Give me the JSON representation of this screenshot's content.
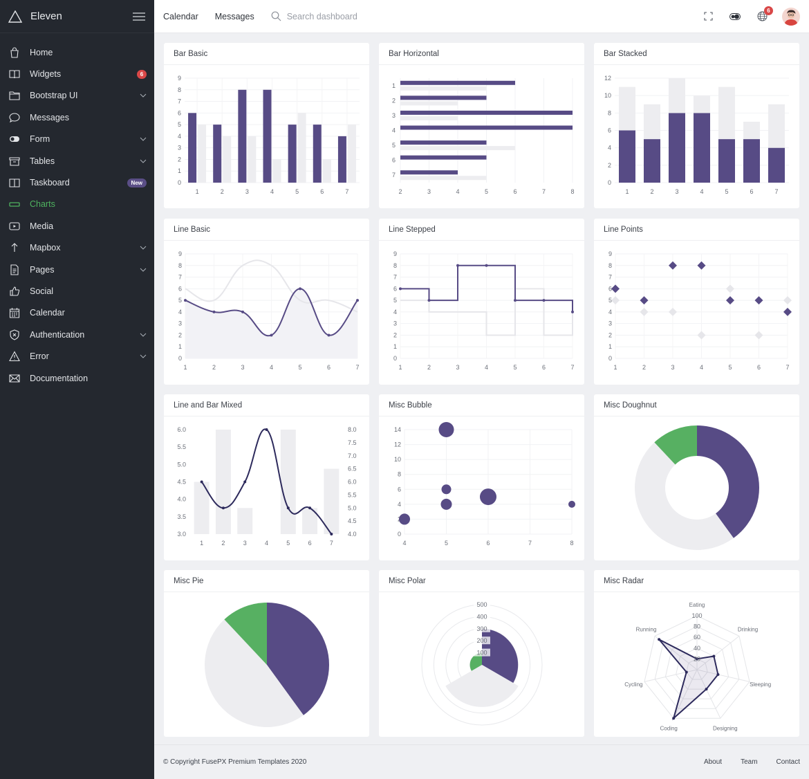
{
  "brand": {
    "name": "Eleven"
  },
  "sidebar": {
    "items": [
      {
        "label": "Home",
        "icon": "bag-icon"
      },
      {
        "label": "Widgets",
        "icon": "book-icon",
        "badge": "6"
      },
      {
        "label": "Bootstrap UI",
        "icon": "folder-icon",
        "chevron": true
      },
      {
        "label": "Messages",
        "icon": "chat-icon"
      },
      {
        "label": "Form",
        "icon": "toggle-icon",
        "chevron": true
      },
      {
        "label": "Tables",
        "icon": "archive-icon",
        "chevron": true
      },
      {
        "label": "Taskboard",
        "icon": "board-icon",
        "badge_new": "New"
      },
      {
        "label": "Charts",
        "icon": "chart-icon",
        "active": true
      },
      {
        "label": "Media",
        "icon": "play-icon"
      },
      {
        "label": "Mapbox",
        "icon": "arrow-up-icon",
        "chevron": true
      },
      {
        "label": "Pages",
        "icon": "page-icon",
        "chevron": true
      },
      {
        "label": "Social",
        "icon": "thumb-icon"
      },
      {
        "label": "Calendar",
        "icon": "calendar-icon"
      },
      {
        "label": "Authentication",
        "icon": "shield-icon",
        "chevron": true
      },
      {
        "label": "Error",
        "icon": "warning-icon",
        "chevron": true
      },
      {
        "label": "Documentation",
        "icon": "mail-icon"
      }
    ]
  },
  "header": {
    "calendar": "Calendar",
    "messages": "Messages",
    "search_placeholder": "Search dashboard",
    "notification_count": "6"
  },
  "cards": {
    "bar_basic": "Bar Basic",
    "bar_horizontal": "Bar Horizontal",
    "bar_stacked": "Bar Stacked",
    "line_basic": "Line Basic",
    "line_stepped": "Line Stepped",
    "line_points": "Line Points",
    "line_bar_mixed": "Line and Bar Mixed",
    "misc_bubble": "Misc Bubble",
    "misc_doughnut": "Misc Doughnut",
    "misc_pie": "Misc Pie",
    "misc_polar": "Misc Polar",
    "misc_radar": "Misc Radar"
  },
  "colors": {
    "primary": "#574b85",
    "secondary": "#ededf0",
    "green": "#57b062"
  },
  "chart_data": [
    {
      "id": "bar_basic",
      "type": "bar",
      "title": "Bar Basic",
      "categories": [
        "1",
        "2",
        "3",
        "4",
        "5",
        "6",
        "7"
      ],
      "series": [
        {
          "values": [
            6,
            5,
            8,
            8,
            5,
            5,
            4
          ]
        },
        {
          "values": [
            5,
            4,
            4,
            2,
            6,
            2,
            5
          ]
        }
      ],
      "ylim": [
        0,
        9
      ]
    },
    {
      "id": "bar_horizontal",
      "type": "bar",
      "orientation": "horizontal",
      "title": "Bar Horizontal",
      "categories": [
        "1",
        "2",
        "3",
        "4",
        "5",
        "6",
        "7"
      ],
      "series": [
        {
          "values": [
            6,
            5,
            8,
            8,
            5,
            5,
            4
          ]
        },
        {
          "values": [
            5,
            4,
            4,
            2,
            6,
            2,
            5
          ]
        }
      ],
      "xlim": [
        2,
        8
      ]
    },
    {
      "id": "bar_stacked",
      "type": "bar",
      "stacked": true,
      "title": "Bar Stacked",
      "categories": [
        "1",
        "2",
        "3",
        "4",
        "5",
        "6",
        "7"
      ],
      "series": [
        {
          "values": [
            6,
            5,
            8,
            8,
            5,
            5,
            4
          ]
        },
        {
          "values": [
            5,
            4,
            4,
            2,
            6,
            2,
            5
          ]
        }
      ],
      "ylim": [
        0,
        12
      ]
    },
    {
      "id": "line_basic",
      "type": "line",
      "smooth": true,
      "title": "Line Basic",
      "x": [
        1,
        2,
        3,
        4,
        5,
        6,
        7
      ],
      "series": [
        {
          "values": [
            5,
            4,
            4,
            2,
            6,
            2,
            5
          ]
        },
        {
          "values": [
            6,
            5,
            8,
            8,
            5,
            5,
            4
          ]
        }
      ],
      "ylim": [
        0,
        9
      ]
    },
    {
      "id": "line_stepped",
      "type": "line",
      "stepped": true,
      "title": "Line Stepped",
      "x": [
        1,
        2,
        3,
        4,
        5,
        6,
        7
      ],
      "series": [
        {
          "values": [
            6,
            5,
            8,
            8,
            5,
            5,
            4
          ]
        },
        {
          "values": [
            5,
            4,
            4,
            2,
            6,
            2,
            5
          ]
        }
      ],
      "ylim": [
        0,
        9
      ]
    },
    {
      "id": "line_points",
      "type": "scatter",
      "title": "Line Points",
      "x": [
        1,
        2,
        3,
        4,
        5,
        6,
        7
      ],
      "series": [
        {
          "values": [
            6,
            5,
            8,
            8,
            5,
            5,
            4
          ]
        },
        {
          "values": [
            5,
            4,
            4,
            2,
            6,
            2,
            5
          ]
        }
      ],
      "ylim": [
        0,
        9
      ]
    },
    {
      "id": "line_bar_mixed",
      "type": "line",
      "title": "Line and Bar Mixed",
      "x": [
        1,
        2,
        3,
        4,
        5,
        6,
        7
      ],
      "series": [
        {
          "type": "line",
          "axis": "left",
          "values": [
            4.5,
            3.75,
            4.5,
            6,
            3.75,
            3.75,
            3
          ]
        },
        {
          "type": "bar",
          "axis": "right",
          "values": [
            6,
            8,
            5,
            4,
            8,
            5,
            6.5
          ]
        }
      ],
      "y_left": [
        3,
        6
      ],
      "y_right": [
        4,
        8
      ]
    },
    {
      "id": "misc_bubble",
      "type": "scatter",
      "bubble": true,
      "title": "Misc Bubble",
      "points": [
        {
          "x": 4,
          "y": 2,
          "r": 8
        },
        {
          "x": 5,
          "y": 14,
          "r": 11
        },
        {
          "x": 5,
          "y": 6,
          "r": 7
        },
        {
          "x": 5,
          "y": 4,
          "r": 8
        },
        {
          "x": 6,
          "y": 5,
          "r": 12
        },
        {
          "x": 8,
          "y": 4,
          "r": 5
        }
      ],
      "xlim": [
        4,
        8
      ],
      "ylim": [
        0,
        14
      ]
    },
    {
      "id": "misc_doughnut",
      "type": "pie",
      "doughnut": true,
      "title": "Misc Doughnut",
      "values": [
        40,
        48,
        12
      ]
    },
    {
      "id": "misc_pie",
      "type": "pie",
      "title": "Misc Pie",
      "values": [
        40,
        48,
        12
      ]
    },
    {
      "id": "misc_polar",
      "type": "pie",
      "polar": true,
      "title": "Misc Polar",
      "values": [
        300,
        350,
        100
      ],
      "rlim": [
        0,
        500
      ],
      "ticks": [
        "100",
        "200",
        "300",
        "400",
        "500"
      ]
    },
    {
      "id": "misc_radar",
      "type": "radar",
      "title": "Misc Radar",
      "labels": [
        "Eating",
        "Drinking",
        "Sleeping",
        "Designing",
        "Coding",
        "Cycling",
        "Running"
      ],
      "values": [
        20,
        40,
        40,
        40,
        100,
        20,
        90
      ],
      "ticks": [
        "20",
        "40",
        "60",
        "80",
        "100"
      ]
    }
  ],
  "footer": {
    "copyright": "© Copyright FusePX Premium Templates 2020",
    "links": [
      "About",
      "Team",
      "Contact"
    ]
  }
}
